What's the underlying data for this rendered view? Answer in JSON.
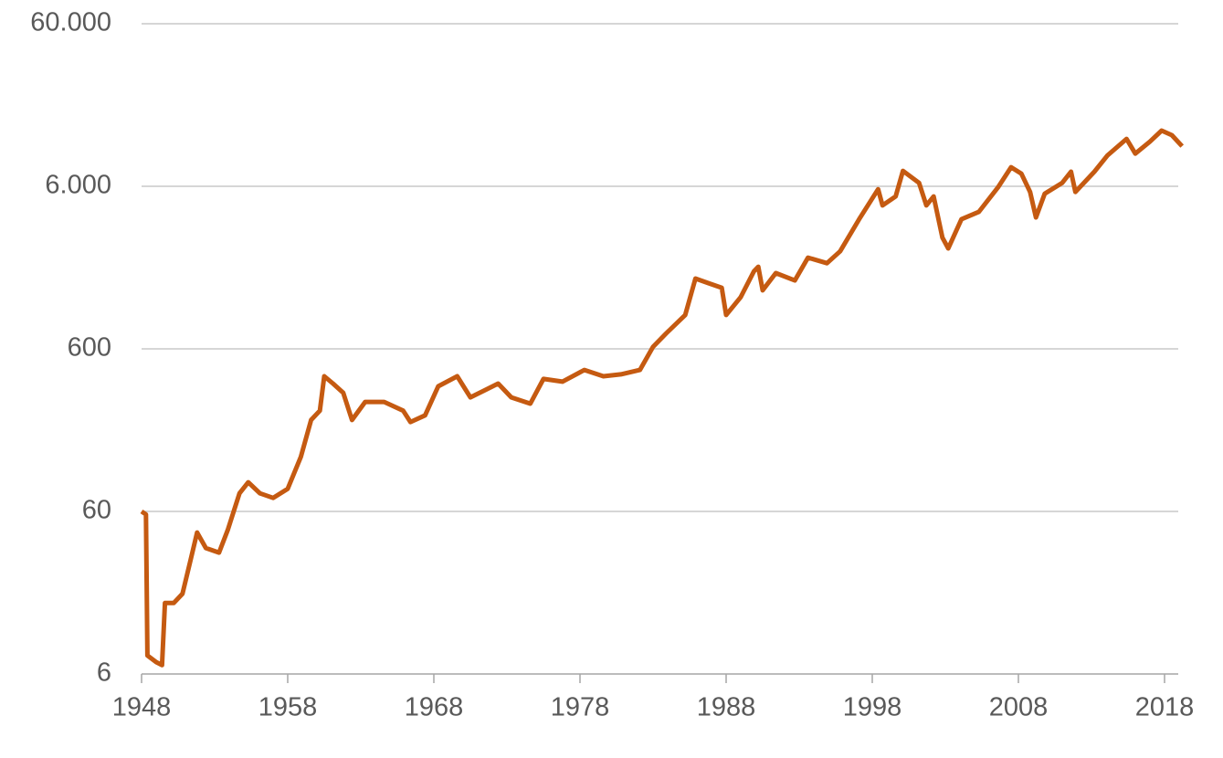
{
  "chart_data": {
    "type": "line",
    "log_y": true,
    "grid": true,
    "xlim": [
      1948,
      2019.2
    ],
    "xticks": [
      1948,
      1958,
      1968,
      1978,
      1988,
      1998,
      2008,
      2018
    ],
    "ylim": [
      6,
      60000
    ],
    "yticks": [
      6,
      60,
      600,
      {
        "value": 6000,
        "label": "6.000"
      },
      {
        "value": 60000,
        "label": "60.000"
      }
    ],
    "series": [
      {
        "color": "#c55a11",
        "x": [
          1948,
          1948.3,
          1948.4,
          1949,
          1949.4,
          1949.6,
          1950.2,
          1950.8,
          1951.4,
          1951.8,
          1952.4,
          1953.3,
          1953.9,
          1954.7,
          1955.3,
          1956.1,
          1957,
          1958,
          1958.9,
          1959.6,
          1960.2,
          1960.5,
          1961.1,
          1961.8,
          1962.4,
          1963.3,
          1964.6,
          1965.9,
          1966.4,
          1967.4,
          1968.3,
          1969.6,
          1970.5,
          1971.4,
          1972.4,
          1973.3,
          1974.6,
          1975.5,
          1976.8,
          1978.3,
          1979.6,
          1980.8,
          1982.1,
          1983,
          1983.9,
          1985.2,
          1985.9,
          1986.8,
          1987.7,
          1988,
          1989,
          1989.9,
          1990.2,
          1990.5,
          1991.4,
          1992.7,
          1993.6,
          1994.9,
          1995.8,
          1997.1,
          1998.4,
          1998.7,
          1999.6,
          2000.1,
          2001.2,
          2001.7,
          2002.2,
          2002.8,
          2003.2,
          2004.1,
          2005.3,
          2006.6,
          2007.5,
          2008.2,
          2008.8,
          2009.2,
          2009.8,
          2011,
          2011.6,
          2011.9,
          2013.2,
          2014.1,
          2015.4,
          2016,
          2017,
          2017.8,
          2018.5,
          2019.2
        ],
        "values": [
          60,
          57.5,
          7.8,
          7.1,
          6.8,
          16.4,
          16.4,
          18.7,
          31.4,
          44.5,
          35.7,
          33.5,
          46.2,
          77.5,
          90.6,
          77.5,
          72.7,
          82.7,
          130,
          219,
          250,
          407,
          367,
          322,
          219,
          283,
          283,
          250,
          213,
          234,
          353,
          407,
          302,
          331,
          367,
          302,
          276,
          392,
          377,
          445,
          407,
          418,
          445,
          618,
          748,
          969,
          1625,
          1520,
          1425,
          969,
          1250,
          1800,
          1920,
          1375,
          1755,
          1580,
          2185,
          2020,
          2390,
          3760,
          5760,
          4580,
          5200,
          7470,
          6300,
          4580,
          5200,
          2900,
          2490,
          3760,
          4180,
          5910,
          7860,
          7180,
          5540,
          3860,
          5400,
          6300,
          7380,
          5540,
          7380,
          9300,
          11740,
          9540,
          11290,
          13200,
          12380,
          10590
        ]
      }
    ]
  }
}
